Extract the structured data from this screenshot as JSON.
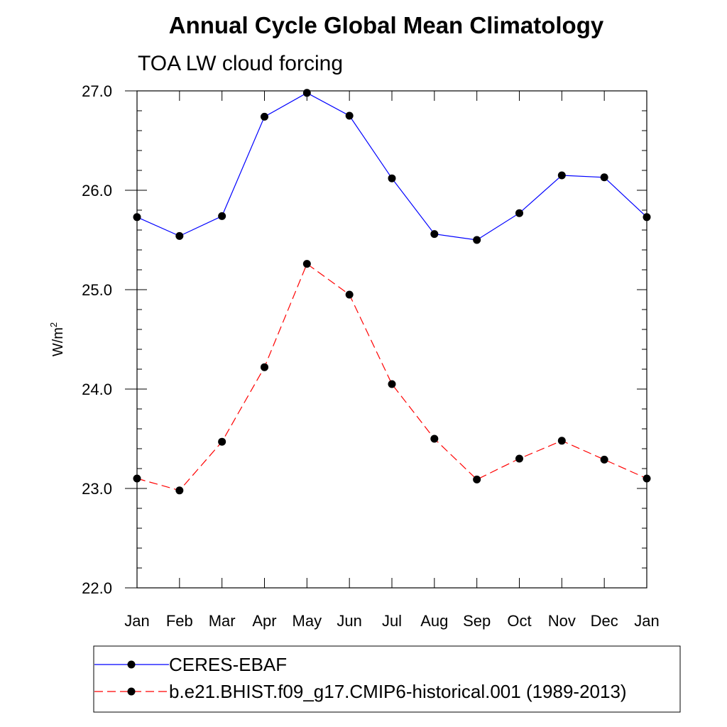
{
  "chart_data": {
    "type": "line",
    "title": "Annual Cycle Global Mean Climatology",
    "subtitle": "TOA LW cloud forcing",
    "ylabel": "W/m",
    "ylabel_sup": "2",
    "xlabel": "",
    "ylim": [
      22.0,
      27.0
    ],
    "yticks": [
      "22.0",
      "23.0",
      "24.0",
      "25.0",
      "26.0",
      "27.0"
    ],
    "categories": [
      "Jan",
      "Feb",
      "Mar",
      "Apr",
      "May",
      "Jun",
      "Jul",
      "Aug",
      "Sep",
      "Oct",
      "Nov",
      "Dec",
      "Jan"
    ],
    "series": [
      {
        "name": "CERES-EBAF",
        "color": "#0000ff",
        "dash": "solid",
        "values": [
          25.73,
          25.54,
          25.74,
          26.74,
          26.98,
          26.75,
          26.12,
          25.56,
          25.5,
          25.77,
          26.15,
          26.13,
          25.73
        ]
      },
      {
        "name": "b.e21.BHIST.f09_g17.CMIP6-historical.001 (1989-2013)",
        "color": "#ff0000",
        "dash": "dashed",
        "values": [
          23.1,
          22.98,
          23.47,
          24.22,
          25.26,
          24.95,
          24.05,
          23.5,
          23.09,
          23.3,
          23.48,
          23.29,
          23.1
        ]
      }
    ],
    "legend_position": "bottom"
  }
}
